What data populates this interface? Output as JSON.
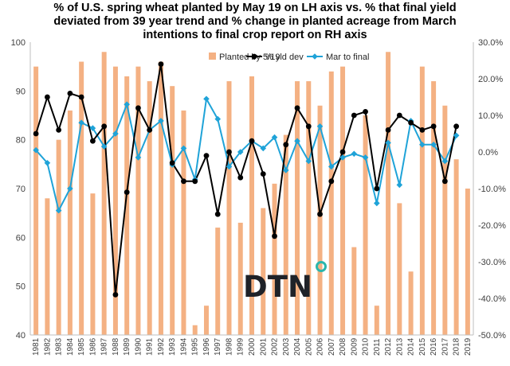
{
  "chart_data": {
    "type": "bar+line",
    "title_lines": [
      "% of U.S. spring wheat planted by May 19 on LH axis vs. % that final yield",
      "deviated from 39 year trend and % change in planted acreage from March",
      "intentions to final crop report on RH axis"
    ],
    "years": [
      "1981",
      "1982",
      "1983",
      "1984",
      "1985",
      "1986",
      "1987",
      "1988",
      "1989",
      "1990",
      "1991",
      "1992",
      "1993",
      "1994",
      "1995",
      "1996",
      "1997",
      "1998",
      "1999",
      "2000",
      "2001",
      "2002",
      "2003",
      "2004",
      "2005",
      "2006",
      "2007",
      "2008",
      "2009",
      "2010",
      "2011",
      "2012",
      "2013",
      "2014",
      "2015",
      "2016",
      "2017",
      "2018",
      "2019"
    ],
    "left_axis": {
      "min": 40,
      "max": 100,
      "step": 10,
      "ticks": [
        "40",
        "50",
        "60",
        "70",
        "80",
        "90",
        "100"
      ]
    },
    "right_axis": {
      "min": -50,
      "max": 30,
      "step": 10,
      "ticks": [
        "-50.0%",
        "-40.0%",
        "-30.0%",
        "-20.0%",
        "-10.0%",
        "0.0%",
        "10.0%",
        "20.0%",
        "30.0%"
      ]
    },
    "series": [
      {
        "name": "Planted by 5/19",
        "axis": "left",
        "kind": "bar",
        "color": "#f4b183",
        "values": [
          95,
          68,
          80,
          86,
          96,
          69,
          98,
          95,
          93,
          95,
          92,
          96,
          91,
          86,
          42,
          46,
          62,
          92,
          63,
          93,
          66,
          71,
          81,
          92,
          92,
          87,
          94,
          95,
          58,
          85,
          46,
          98,
          67,
          53,
          95,
          92,
          87,
          76,
          70
        ]
      },
      {
        "name": "% yld dev",
        "axis": "right",
        "kind": "line",
        "color": "#000000",
        "values": [
          5,
          15,
          6,
          16,
          15,
          3,
          7,
          -39,
          -11,
          12,
          6,
          24,
          -3,
          -8,
          -8,
          -1,
          -17,
          0,
          -7,
          3,
          -6,
          -23,
          2,
          12,
          7,
          -17,
          -8,
          0,
          10,
          11,
          -10,
          6,
          10,
          8,
          6,
          7,
          -8,
          7,
          null
        ]
      },
      {
        "name": "Mar to final",
        "axis": "right",
        "kind": "line",
        "color": "#1fa3d8",
        "values": [
          0.5,
          -3,
          -16,
          -10,
          8,
          6.5,
          1.5,
          5,
          13,
          -1.5,
          6,
          8.5,
          -3.5,
          1,
          -7.5,
          14.5,
          9,
          -4,
          0,
          3,
          1,
          4,
          -5,
          3,
          -2.5,
          7,
          -4,
          -1.5,
          -0.5,
          -1.5,
          -14,
          2.5,
          -9,
          8.5,
          2,
          2,
          -2.5,
          4.5,
          null
        ]
      }
    ],
    "legend": [
      "Planted by 5/19",
      "% yld dev",
      "Mar to final"
    ],
    "legend_position": "top-right",
    "grid": false
  },
  "logo": {
    "text": "DTN",
    "dot_color": "#2bb6ac"
  }
}
